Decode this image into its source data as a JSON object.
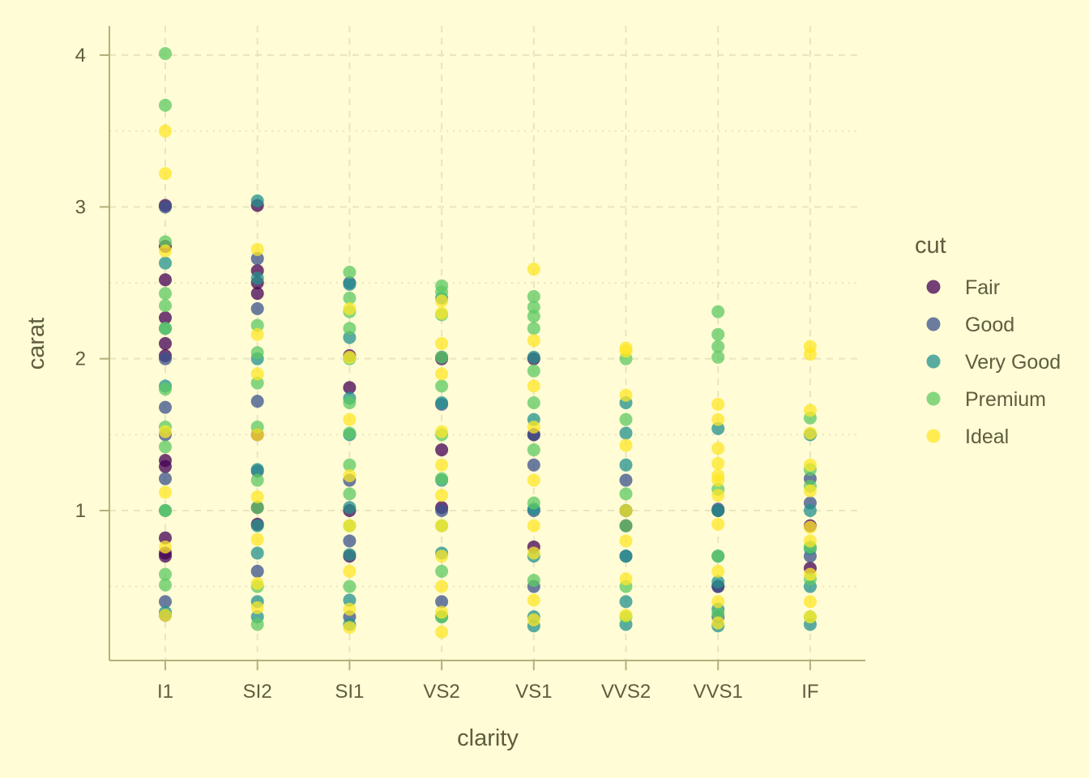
{
  "chart_data": {
    "type": "scatter",
    "xlabel": "clarity",
    "ylabel": "carat",
    "categories": [
      "I1",
      "SI2",
      "SI1",
      "VS2",
      "VS1",
      "VVS2",
      "VVS1",
      "IF"
    ],
    "yticks": [
      1,
      2,
      3,
      4
    ],
    "ylim": [
      0.05,
      4.2
    ],
    "grid": true,
    "legend_title": "cut",
    "legend_position": "right",
    "series": [
      {
        "name": "Fair",
        "color": "#440154",
        "points": [
          [
            "I1",
            3.01
          ],
          [
            "I1",
            2.74
          ],
          [
            "I1",
            2.52
          ],
          [
            "I1",
            2.27
          ],
          [
            "I1",
            2.1
          ],
          [
            "I1",
            2.02
          ],
          [
            "I1",
            1.33
          ],
          [
            "I1",
            1.29
          ],
          [
            "I1",
            0.82
          ],
          [
            "I1",
            0.72
          ],
          [
            "I1",
            0.7
          ],
          [
            "SI2",
            3.01
          ],
          [
            "SI2",
            2.58
          ],
          [
            "SI2",
            2.5
          ],
          [
            "SI2",
            2.43
          ],
          [
            "SI2",
            1.5
          ],
          [
            "SI2",
            1.02
          ],
          [
            "SI2",
            0.91
          ],
          [
            "SI1",
            2.02
          ],
          [
            "SI1",
            1.81
          ],
          [
            "SI1",
            1.0
          ],
          [
            "SI1",
            0.7
          ],
          [
            "VS2",
            2.0
          ],
          [
            "VS2",
            1.4
          ],
          [
            "VS2",
            1.02
          ],
          [
            "VS1",
            2.0
          ],
          [
            "VS1",
            1.5
          ],
          [
            "VS1",
            0.76
          ],
          [
            "VVS2",
            1.0
          ],
          [
            "VVS2",
            0.9
          ],
          [
            "VVS1",
            1.0
          ],
          [
            "VVS1",
            0.5
          ],
          [
            "IF",
            0.62
          ],
          [
            "IF",
            0.9
          ]
        ]
      },
      {
        "name": "Good",
        "color": "#3b528b",
        "points": [
          [
            "I1",
            3.0
          ],
          [
            "I1",
            2.0
          ],
          [
            "I1",
            1.68
          ],
          [
            "I1",
            1.5
          ],
          [
            "I1",
            1.21
          ],
          [
            "I1",
            0.4
          ],
          [
            "I1",
            0.31
          ],
          [
            "SI2",
            2.66
          ],
          [
            "SI2",
            2.33
          ],
          [
            "SI2",
            1.72
          ],
          [
            "SI2",
            1.26
          ],
          [
            "SI2",
            0.6
          ],
          [
            "SI1",
            2.5
          ],
          [
            "SI1",
            1.2
          ],
          [
            "SI1",
            0.8
          ],
          [
            "SI1",
            0.3
          ],
          [
            "VS2",
            2.01
          ],
          [
            "VS2",
            1.7
          ],
          [
            "VS2",
            1.0
          ],
          [
            "VS2",
            0.4
          ],
          [
            "VS1",
            1.5
          ],
          [
            "VS1",
            1.3
          ],
          [
            "VS1",
            1.0
          ],
          [
            "VS1",
            0.5
          ],
          [
            "VVS2",
            1.2
          ],
          [
            "VVS2",
            0.7
          ],
          [
            "VVS1",
            1.01
          ],
          [
            "VVS1",
            0.5
          ],
          [
            "VVS1",
            0.3
          ],
          [
            "IF",
            1.21
          ],
          [
            "IF",
            1.05
          ],
          [
            "IF",
            0.7
          ]
        ]
      },
      {
        "name": "Very Good",
        "color": "#21918c",
        "points": [
          [
            "I1",
            2.63
          ],
          [
            "I1",
            2.2
          ],
          [
            "I1",
            1.82
          ],
          [
            "I1",
            1.0
          ],
          [
            "I1",
            0.33
          ],
          [
            "SI2",
            3.04
          ],
          [
            "SI2",
            2.53
          ],
          [
            "SI2",
            2.0
          ],
          [
            "SI2",
            1.27
          ],
          [
            "SI2",
            0.9
          ],
          [
            "SI2",
            0.72
          ],
          [
            "SI2",
            0.4
          ],
          [
            "SI2",
            0.3
          ],
          [
            "SI1",
            2.49
          ],
          [
            "SI1",
            2.14
          ],
          [
            "SI1",
            1.74
          ],
          [
            "SI1",
            1.5
          ],
          [
            "SI1",
            1.02
          ],
          [
            "SI1",
            0.71
          ],
          [
            "SI1",
            0.41
          ],
          [
            "SI1",
            0.25
          ],
          [
            "VS2",
            2.4
          ],
          [
            "VS2",
            1.71
          ],
          [
            "VS2",
            1.2
          ],
          [
            "VS2",
            0.72
          ],
          [
            "VS2",
            0.3
          ],
          [
            "VS1",
            2.01
          ],
          [
            "VS1",
            1.6
          ],
          [
            "VS1",
            1.01
          ],
          [
            "VS1",
            0.7
          ],
          [
            "VS1",
            0.3
          ],
          [
            "VS1",
            0.24
          ],
          [
            "VVS2",
            1.71
          ],
          [
            "VVS2",
            1.51
          ],
          [
            "VVS2",
            1.3
          ],
          [
            "VVS2",
            1.0
          ],
          [
            "VVS2",
            0.7
          ],
          [
            "VVS2",
            0.4
          ],
          [
            "VVS2",
            0.25
          ],
          [
            "VVS1",
            1.54
          ],
          [
            "VVS1",
            1.0
          ],
          [
            "VVS1",
            0.7
          ],
          [
            "VVS1",
            0.53
          ],
          [
            "VVS1",
            0.35
          ],
          [
            "VVS1",
            0.24
          ],
          [
            "IF",
            1.5
          ],
          [
            "IF",
            1.0
          ],
          [
            "IF",
            0.75
          ],
          [
            "IF",
            0.5
          ],
          [
            "IF",
            0.25
          ]
        ]
      },
      {
        "name": "Premium",
        "color": "#5ec962",
        "points": [
          [
            "I1",
            4.01
          ],
          [
            "I1",
            3.67
          ],
          [
            "I1",
            2.77
          ],
          [
            "I1",
            2.43
          ],
          [
            "I1",
            2.35
          ],
          [
            "I1",
            2.2
          ],
          [
            "I1",
            1.8
          ],
          [
            "I1",
            1.55
          ],
          [
            "I1",
            1.42
          ],
          [
            "I1",
            1.0
          ],
          [
            "I1",
            0.58
          ],
          [
            "I1",
            0.51
          ],
          [
            "SI2",
            2.22
          ],
          [
            "SI2",
            2.04
          ],
          [
            "SI2",
            1.84
          ],
          [
            "SI2",
            1.55
          ],
          [
            "SI2",
            1.2
          ],
          [
            "SI2",
            1.02
          ],
          [
            "SI2",
            0.5
          ],
          [
            "SI2",
            0.25
          ],
          [
            "SI1",
            2.57
          ],
          [
            "SI1",
            2.4
          ],
          [
            "SI1",
            2.31
          ],
          [
            "SI1",
            2.2
          ],
          [
            "SI1",
            2.0
          ],
          [
            "SI1",
            1.71
          ],
          [
            "SI1",
            1.51
          ],
          [
            "SI1",
            1.3
          ],
          [
            "SI1",
            1.11
          ],
          [
            "SI1",
            0.9
          ],
          [
            "SI1",
            0.5
          ],
          [
            "VS2",
            2.48
          ],
          [
            "VS2",
            2.44
          ],
          [
            "VS2",
            2.29
          ],
          [
            "VS2",
            2.01
          ],
          [
            "VS2",
            1.82
          ],
          [
            "VS2",
            1.5
          ],
          [
            "VS2",
            1.21
          ],
          [
            "VS2",
            0.9
          ],
          [
            "VS2",
            0.6
          ],
          [
            "VS2",
            0.3
          ],
          [
            "VS1",
            2.41
          ],
          [
            "VS1",
            2.34
          ],
          [
            "VS1",
            2.28
          ],
          [
            "VS1",
            2.2
          ],
          [
            "VS1",
            1.92
          ],
          [
            "VS1",
            1.71
          ],
          [
            "VS1",
            1.4
          ],
          [
            "VS1",
            1.05
          ],
          [
            "VS1",
            0.54
          ],
          [
            "VVS2",
            2.0
          ],
          [
            "VVS2",
            1.6
          ],
          [
            "VVS2",
            1.11
          ],
          [
            "VVS2",
            0.9
          ],
          [
            "VVS2",
            0.5
          ],
          [
            "VVS2",
            0.3
          ],
          [
            "VVS1",
            2.31
          ],
          [
            "VVS1",
            2.16
          ],
          [
            "VVS1",
            2.08
          ],
          [
            "VVS1",
            2.01
          ],
          [
            "VVS1",
            1.14
          ],
          [
            "VVS1",
            0.7
          ],
          [
            "VVS1",
            0.32
          ],
          [
            "IF",
            1.61
          ],
          [
            "IF",
            1.27
          ],
          [
            "IF",
            1.16
          ],
          [
            "IF",
            0.76
          ],
          [
            "IF",
            0.55
          ],
          [
            "IF",
            0.3
          ]
        ]
      },
      {
        "name": "Ideal",
        "color": "#fde725",
        "points": [
          [
            "I1",
            3.5
          ],
          [
            "I1",
            3.22
          ],
          [
            "I1",
            2.71
          ],
          [
            "I1",
            1.52
          ],
          [
            "I1",
            1.12
          ],
          [
            "I1",
            0.76
          ],
          [
            "I1",
            0.31
          ],
          [
            "SI2",
            2.72
          ],
          [
            "SI2",
            2.16
          ],
          [
            "SI2",
            1.9
          ],
          [
            "SI2",
            1.5
          ],
          [
            "SI2",
            1.09
          ],
          [
            "SI2",
            0.81
          ],
          [
            "SI2",
            0.52
          ],
          [
            "SI2",
            0.36
          ],
          [
            "SI1",
            2.33
          ],
          [
            "SI1",
            2.01
          ],
          [
            "SI1",
            1.6
          ],
          [
            "SI1",
            1.23
          ],
          [
            "SI1",
            0.9
          ],
          [
            "SI1",
            0.6
          ],
          [
            "SI1",
            0.35
          ],
          [
            "SI1",
            0.23
          ],
          [
            "VS2",
            2.38
          ],
          [
            "VS2",
            2.3
          ],
          [
            "VS2",
            2.1
          ],
          [
            "VS2",
            1.9
          ],
          [
            "VS2",
            1.52
          ],
          [
            "VS2",
            1.3
          ],
          [
            "VS2",
            1.1
          ],
          [
            "VS2",
            0.9
          ],
          [
            "VS2",
            0.7
          ],
          [
            "VS2",
            0.5
          ],
          [
            "VS2",
            0.33
          ],
          [
            "VS2",
            0.2
          ],
          [
            "VS1",
            2.59
          ],
          [
            "VS1",
            2.12
          ],
          [
            "VS1",
            1.82
          ],
          [
            "VS1",
            1.55
          ],
          [
            "VS1",
            1.2
          ],
          [
            "VS1",
            0.9
          ],
          [
            "VS1",
            0.72
          ],
          [
            "VS1",
            0.41
          ],
          [
            "VS1",
            0.28
          ],
          [
            "VVS2",
            2.07
          ],
          [
            "VVS2",
            2.05
          ],
          [
            "VVS2",
            1.76
          ],
          [
            "VVS2",
            1.43
          ],
          [
            "VVS2",
            1.0
          ],
          [
            "VVS2",
            0.8
          ],
          [
            "VVS2",
            0.55
          ],
          [
            "VVS2",
            0.31
          ],
          [
            "VVS1",
            1.7
          ],
          [
            "VVS1",
            1.6
          ],
          [
            "VVS1",
            1.41
          ],
          [
            "VVS1",
            1.31
          ],
          [
            "VVS1",
            1.23
          ],
          [
            "VVS1",
            1.2
          ],
          [
            "VVS1",
            1.1
          ],
          [
            "VVS1",
            0.91
          ],
          [
            "VVS1",
            0.6
          ],
          [
            "VVS1",
            0.4
          ],
          [
            "VVS1",
            0.26
          ],
          [
            "IF",
            2.08
          ],
          [
            "IF",
            2.03
          ],
          [
            "IF",
            1.66
          ],
          [
            "IF",
            1.51
          ],
          [
            "IF",
            1.3
          ],
          [
            "IF",
            1.13
          ],
          [
            "IF",
            0.89
          ],
          [
            "IF",
            0.8
          ],
          [
            "IF",
            0.58
          ],
          [
            "IF",
            0.4
          ],
          [
            "IF",
            0.3
          ]
        ]
      }
    ]
  }
}
